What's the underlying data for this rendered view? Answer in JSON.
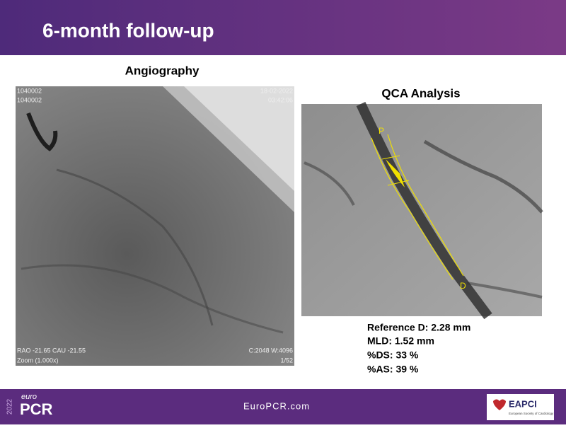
{
  "header": {
    "title": "6-month follow-up"
  },
  "angiography": {
    "title": "Angiography",
    "overlay": {
      "top_left": [
        "1040002",
        "1040002"
      ],
      "top_right": [
        "18-02-2022",
        "03:42:06"
      ],
      "bottom_left": [
        "RAO -21.65  CAU -21.55",
        "Zoom (1.000x)"
      ],
      "bottom_right": [
        "C:2048 W:4096",
        "1/52"
      ]
    }
  },
  "qca": {
    "title": "QCA Analysis",
    "markers": [
      "P",
      "D"
    ],
    "results": [
      "Reference D: 2.28 mm",
      "MLD: 1.52 mm",
      "%DS: 33 %",
      "%AS: 39 %"
    ]
  },
  "footer": {
    "year": "2022",
    "brand_small": "euro",
    "brand": "PCR",
    "url": "EuroPCR.com",
    "logo": "EAPCI",
    "logo_sub": "European Society of Cardiology"
  }
}
